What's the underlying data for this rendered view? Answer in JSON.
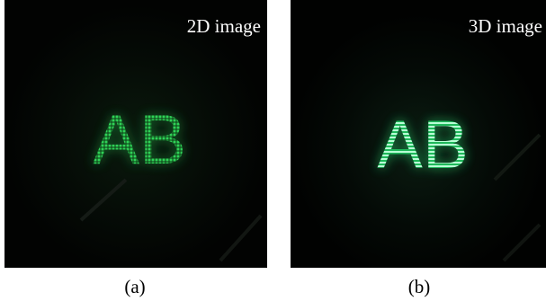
{
  "panels": [
    {
      "overlay_label": "2D image",
      "display_text": "AB",
      "caption": "(a)"
    },
    {
      "overlay_label": "3D image",
      "display_text": "AB",
      "caption": "(b)"
    }
  ]
}
